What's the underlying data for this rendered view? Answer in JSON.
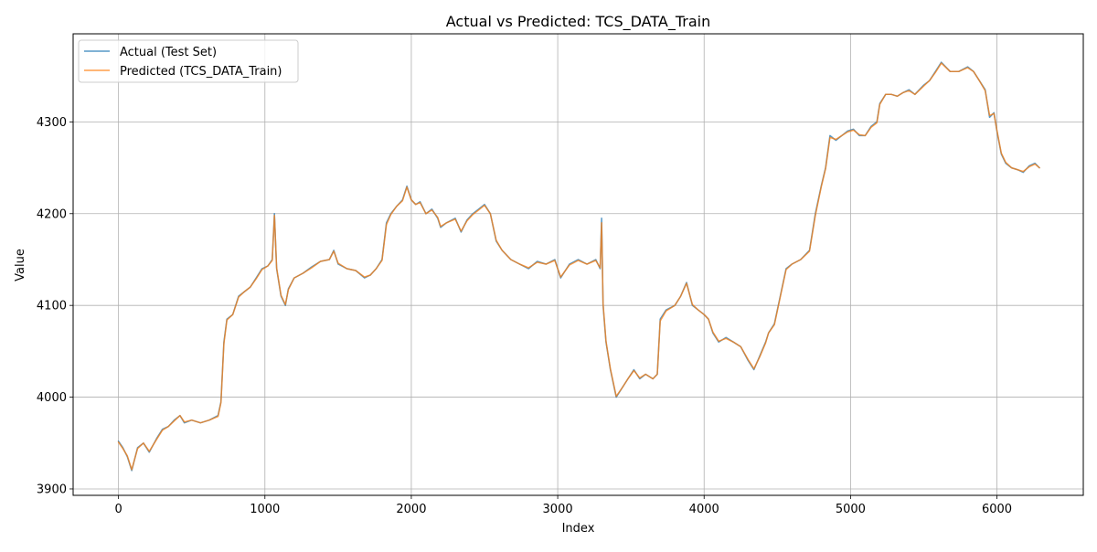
{
  "chart_data": {
    "type": "line",
    "title": "Actual vs Predicted: TCS_DATA_Train",
    "xlabel": "Index",
    "ylabel": "Value",
    "xlim": [
      -310,
      6590
    ],
    "ylim": [
      3893,
      4396
    ],
    "xticks": [
      0,
      1000,
      2000,
      3000,
      4000,
      5000,
      6000
    ],
    "yticks": [
      3900,
      4000,
      4100,
      4200,
      4300
    ],
    "grid": true,
    "legend_position": "upper-left",
    "series": [
      {
        "name": "Actual (Test Set)",
        "color": "#1f77b4",
        "x": [
          0,
          30,
          60,
          90,
          130,
          170,
          210,
          260,
          300,
          340,
          380,
          420,
          450,
          500,
          560,
          620,
          680,
          700,
          720,
          740,
          780,
          820,
          860,
          900,
          940,
          980,
          1020,
          1050,
          1065,
          1080,
          1110,
          1140,
          1160,
          1200,
          1260,
          1320,
          1380,
          1440,
          1470,
          1500,
          1560,
          1620,
          1680,
          1720,
          1760,
          1800,
          1830,
          1860,
          1900,
          1940,
          1970,
          2000,
          2030,
          2060,
          2100,
          2140,
          2180,
          2200,
          2240,
          2300,
          2340,
          2380,
          2420,
          2460,
          2500,
          2540,
          2580,
          2620,
          2680,
          2740,
          2800,
          2860,
          2920,
          2980,
          3020,
          3080,
          3140,
          3200,
          3260,
          3290,
          3300,
          3310,
          3330,
          3360,
          3400,
          3440,
          3480,
          3520,
          3560,
          3600,
          3650,
          3680,
          3700,
          3740,
          3800,
          3840,
          3880,
          3920,
          3960,
          4000,
          4030,
          4060,
          4100,
          4150,
          4200,
          4250,
          4300,
          4340,
          4380,
          4420,
          4440,
          4480,
          4520,
          4560,
          4600,
          4660,
          4720,
          4760,
          4800,
          4830,
          4860,
          4900,
          4940,
          4980,
          5020,
          5060,
          5100,
          5140,
          5180,
          5200,
          5240,
          5280,
          5320,
          5360,
          5400,
          5440,
          5500,
          5540,
          5580,
          5620,
          5680,
          5740,
          5800,
          5840,
          5880,
          5920,
          5950,
          5980,
          6000,
          6030,
          6060,
          6100,
          6140,
          6180,
          6220,
          6260,
          6290
        ],
        "values": [
          3952,
          3945,
          3935,
          3920,
          3945,
          3950,
          3940,
          3955,
          3965,
          3968,
          3975,
          3980,
          3972,
          3975,
          3972,
          3975,
          3980,
          3995,
          4060,
          4085,
          4090,
          4110,
          4115,
          4120,
          4130,
          4140,
          4143,
          4150,
          4200,
          4140,
          4110,
          4100,
          4118,
          4130,
          4135,
          4142,
          4148,
          4150,
          4160,
          4145,
          4140,
          4138,
          4130,
          4133,
          4140,
          4150,
          4190,
          4200,
          4208,
          4215,
          4230,
          4215,
          4210,
          4213,
          4200,
          4205,
          4195,
          4185,
          4190,
          4195,
          4180,
          4193,
          4200,
          4205,
          4210,
          4200,
          4170,
          4160,
          4150,
          4145,
          4140,
          4148,
          4145,
          4150,
          4130,
          4145,
          4150,
          4145,
          4150,
          4140,
          4195,
          4100,
          4060,
          4030,
          4000,
          4010,
          4020,
          4030,
          4020,
          4025,
          4020,
          4025,
          4085,
          4095,
          4100,
          4110,
          4125,
          4100,
          4095,
          4090,
          4085,
          4070,
          4060,
          4065,
          4060,
          4055,
          4040,
          4030,
          4045,
          4060,
          4070,
          4080,
          4110,
          4140,
          4145,
          4150,
          4160,
          4200,
          4230,
          4250,
          4285,
          4280,
          4285,
          4290,
          4292,
          4285,
          4285,
          4295,
          4300,
          4320,
          4330,
          4330,
          4328,
          4332,
          4335,
          4330,
          4340,
          4345,
          4355,
          4365,
          4355,
          4355,
          4360,
          4355,
          4345,
          4335,
          4305,
          4310,
          4290,
          4265,
          4255,
          4250,
          4248,
          4245,
          4252,
          4255,
          4250
        ],
        "linewidth": 1.5,
        "opacity": 0.75
      },
      {
        "name": "Predicted (TCS_DATA_Train)",
        "color": "#ff7f0e",
        "x": [
          0,
          30,
          60,
          90,
          130,
          170,
          210,
          260,
          300,
          340,
          380,
          420,
          450,
          500,
          560,
          620,
          680,
          700,
          720,
          740,
          780,
          820,
          860,
          900,
          940,
          980,
          1020,
          1050,
          1065,
          1080,
          1110,
          1140,
          1160,
          1200,
          1260,
          1320,
          1380,
          1440,
          1470,
          1500,
          1560,
          1620,
          1680,
          1720,
          1760,
          1800,
          1830,
          1860,
          1900,
          1940,
          1970,
          2000,
          2030,
          2060,
          2100,
          2140,
          2180,
          2200,
          2240,
          2300,
          2340,
          2380,
          2420,
          2460,
          2500,
          2540,
          2580,
          2620,
          2680,
          2740,
          2800,
          2860,
          2920,
          2980,
          3020,
          3080,
          3140,
          3200,
          3260,
          3290,
          3300,
          3310,
          3330,
          3360,
          3400,
          3440,
          3480,
          3520,
          3560,
          3600,
          3650,
          3680,
          3700,
          3740,
          3800,
          3840,
          3880,
          3920,
          3960,
          4000,
          4030,
          4060,
          4100,
          4150,
          4200,
          4250,
          4300,
          4340,
          4380,
          4420,
          4440,
          4480,
          4520,
          4560,
          4600,
          4660,
          4720,
          4760,
          4800,
          4830,
          4860,
          4900,
          4940,
          4980,
          5020,
          5060,
          5100,
          5140,
          5180,
          5200,
          5240,
          5280,
          5320,
          5360,
          5400,
          5440,
          5500,
          5540,
          5580,
          5620,
          5680,
          5740,
          5800,
          5840,
          5880,
          5920,
          5950,
          5980,
          6000,
          6030,
          6060,
          6100,
          6140,
          6180,
          6220,
          6260,
          6290
        ],
        "values": [
          3951,
          3944,
          3936,
          3921,
          3944,
          3950,
          3941,
          3954,
          3964,
          3968,
          3974,
          3980,
          3973,
          3975,
          3972,
          3975,
          3979,
          3994,
          4058,
          4084,
          4090,
          4109,
          4115,
          4120,
          4129,
          4139,
          4143,
          4149,
          4198,
          4141,
          4111,
          4101,
          4117,
          4130,
          4135,
          4141,
          4148,
          4150,
          4159,
          4146,
          4140,
          4138,
          4131,
          4133,
          4140,
          4149,
          4188,
          4199,
          4208,
          4214,
          4229,
          4215,
          4210,
          4212,
          4200,
          4204,
          4196,
          4186,
          4190,
          4194,
          4181,
          4192,
          4199,
          4204,
          4209,
          4200,
          4171,
          4160,
          4150,
          4145,
          4141,
          4147,
          4145,
          4149,
          4131,
          4144,
          4149,
          4145,
          4149,
          4141,
          4190,
          4102,
          4061,
          4031,
          4001,
          4010,
          4020,
          4029,
          4021,
          4025,
          4020,
          4025,
          4083,
          4094,
          4100,
          4110,
          4124,
          4101,
          4095,
          4090,
          4085,
          4071,
          4061,
          4064,
          4060,
          4055,
          4041,
          4031,
          4044,
          4059,
          4070,
          4079,
          4109,
          4139,
          4145,
          4150,
          4159,
          4198,
          4229,
          4249,
          4283,
          4281,
          4285,
          4289,
          4291,
          4286,
          4285,
          4294,
          4299,
          4319,
          4330,
          4330,
          4328,
          4332,
          4334,
          4330,
          4339,
          4345,
          4354,
          4364,
          4355,
          4355,
          4359,
          4355,
          4345,
          4334,
          4307,
          4309,
          4291,
          4266,
          4256,
          4250,
          4248,
          4246,
          4251,
          4254,
          4250
        ],
        "linewidth": 1.5,
        "opacity": 0.75
      }
    ]
  }
}
